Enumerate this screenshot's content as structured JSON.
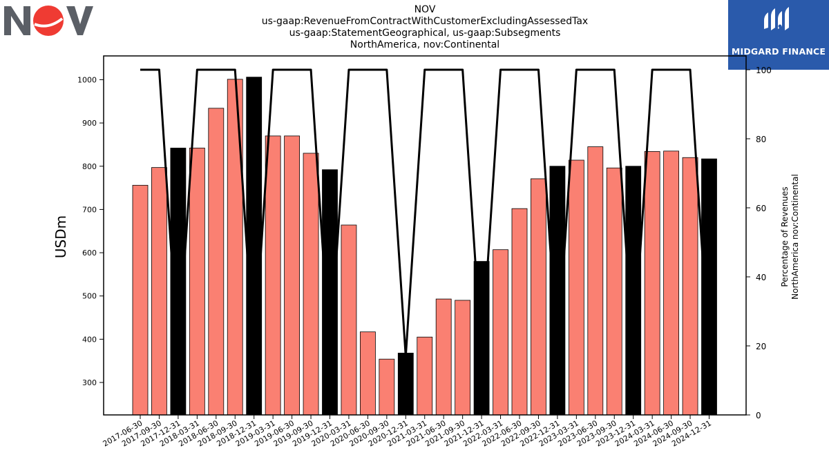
{
  "header": {
    "title_lines": [
      "NOV",
      "us-gaap:RevenueFromContractWithCustomerExcludingAssessedTax",
      "us-gaap:StatementGeographical, us-gaap:Subsegments",
      "NorthAmerica, nov:Continental"
    ]
  },
  "branding": {
    "left_logo": "NOV",
    "right_logo_text": "MIDGARD FINANCE",
    "right_logo_bg": "#2a5aab"
  },
  "chart_data": {
    "type": "bar",
    "categories": [
      "2017-06-30",
      "2017-09-30",
      "2017-12-31",
      "2018-03-31",
      "2018-06-30",
      "2018-09-30",
      "2018-12-31",
      "2019-03-31",
      "2019-06-30",
      "2019-09-30",
      "2019-12-31",
      "2020-03-31",
      "2020-06-30",
      "2020-09-30",
      "2020-12-31",
      "2021-03-31",
      "2021-06-30",
      "2021-09-30",
      "2021-12-31",
      "2022-03-31",
      "2022-06-30",
      "2022-09-30",
      "2022-12-31",
      "2023-03-31",
      "2023-06-30",
      "2023-09-30",
      "2023-12-31",
      "2024-03-31",
      "2024-06-30",
      "2024-09-30",
      "2024-12-31"
    ],
    "values": [
      756,
      797,
      842,
      842,
      934,
      1001,
      1006,
      870,
      870,
      830,
      792,
      664,
      417,
      354,
      368,
      405,
      493,
      490,
      580,
      607,
      702,
      771,
      800,
      814,
      845,
      796,
      800,
      834,
      835,
      820,
      817
    ],
    "bar_colors": [
      "#fa8072",
      "#fa8072",
      "#000000",
      "#fa8072",
      "#fa8072",
      "#fa8072",
      "#000000",
      "#fa8072",
      "#fa8072",
      "#fa8072",
      "#000000",
      "#fa8072",
      "#fa8072",
      "#fa8072",
      "#000000",
      "#fa8072",
      "#fa8072",
      "#fa8072",
      "#000000",
      "#fa8072",
      "#fa8072",
      "#fa8072",
      "#000000",
      "#fa8072",
      "#fa8072",
      "#fa8072",
      "#000000",
      "#fa8072",
      "#fa8072",
      "#fa8072",
      "#000000"
    ],
    "secondary_line": {
      "type": "line",
      "color": "#000000",
      "values": [
        100,
        100,
        17,
        100,
        100,
        100,
        17,
        100,
        100,
        100,
        17,
        100,
        100,
        100,
        17,
        100,
        100,
        100,
        17,
        100,
        100,
        100,
        17,
        100,
        100,
        100,
        17,
        100,
        100,
        100,
        17
      ]
    },
    "ylabel": "USDm",
    "ylim": [
      225,
      1055
    ],
    "yticks": [
      300,
      400,
      500,
      600,
      700,
      800,
      900,
      1000
    ],
    "y2label_lines": [
      "Percentage of Revenues",
      "NorthAmerica nov:Continental"
    ],
    "y2lim": [
      0,
      104
    ],
    "y2ticks": [
      0,
      20,
      40,
      60,
      80,
      100
    ],
    "grid": false,
    "legend": "none"
  }
}
